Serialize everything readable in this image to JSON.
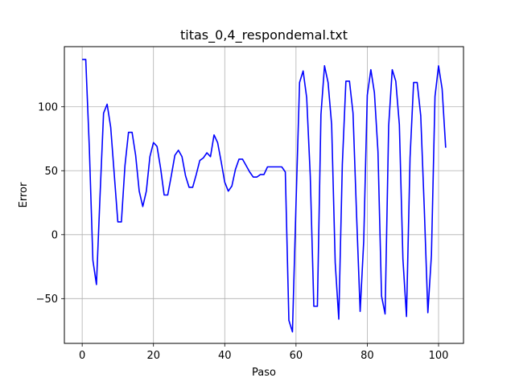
{
  "chart_data": {
    "type": "line",
    "title": "titas_0,4_respondemal.txt",
    "xlabel": "Paso",
    "ylabel": "Error",
    "xlim": [
      -5,
      107
    ],
    "ylim": [
      -85,
      147
    ],
    "xticks": [
      0,
      20,
      40,
      60,
      80,
      100
    ],
    "yticks": [
      -50,
      0,
      50,
      100
    ],
    "grid": true,
    "series": [
      {
        "color": "#0000ff",
        "x": [
          0,
          1,
          2,
          3,
          4,
          5,
          6,
          7,
          8,
          9,
          10,
          11,
          12,
          13,
          14,
          15,
          16,
          17,
          18,
          19,
          20,
          21,
          22,
          23,
          24,
          25,
          26,
          27,
          28,
          29,
          30,
          31,
          32,
          33,
          34,
          35,
          36,
          37,
          38,
          39,
          40,
          41,
          42,
          43,
          44,
          45,
          46,
          47,
          48,
          49,
          50,
          51,
          52,
          53,
          54,
          55,
          56,
          57,
          58,
          59,
          60,
          61,
          62,
          63,
          64,
          65,
          66,
          67,
          68,
          69,
          70,
          71,
          72,
          73,
          74,
          75,
          76,
          77,
          78,
          79,
          80,
          81,
          82,
          83,
          84,
          85,
          86,
          87,
          88,
          89,
          90,
          91,
          92,
          93,
          94,
          95,
          96,
          97,
          98,
          99,
          100,
          101,
          102
        ],
        "values": [
          137,
          137,
          68,
          -20,
          -39,
          30,
          95,
          102,
          84,
          47,
          10,
          10,
          54,
          80,
          80,
          62,
          34,
          22,
          34,
          61,
          72,
          69,
          52,
          31,
          31,
          46,
          62,
          66,
          61,
          46,
          37,
          37,
          47,
          58,
          60,
          64,
          61,
          78,
          72,
          57,
          41,
          34,
          38,
          51,
          59,
          59,
          54,
          49,
          45,
          45,
          47,
          47,
          53,
          53,
          53,
          53,
          53,
          49,
          -67,
          -76,
          24,
          119,
          128,
          107,
          46,
          -56,
          -56,
          94,
          132,
          119,
          86,
          -22,
          -66,
          55,
          120,
          120,
          95,
          15,
          -60,
          -5,
          109,
          129,
          111,
          65,
          -48,
          -62,
          85,
          129,
          120,
          86,
          -19,
          -64,
          60,
          119,
          119,
          93,
          20,
          -61,
          -16,
          108,
          132,
          114,
          68
        ]
      }
    ]
  }
}
